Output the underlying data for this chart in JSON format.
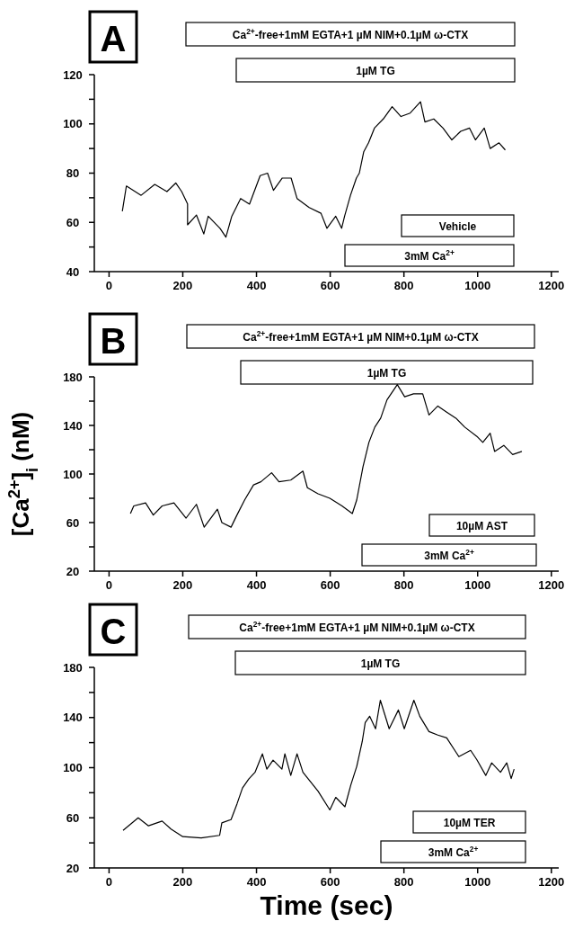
{
  "chart_data": [
    {
      "type": "line",
      "title": "A",
      "xlim": [
        -40,
        1220
      ],
      "xticks": [
        0,
        200,
        400,
        600,
        800,
        1000,
        1200
      ],
      "ylim": [
        40,
        120
      ],
      "yticks": [
        40,
        {
          "value": 50,
          "label": null
        },
        60,
        {
          "value": 70,
          "label": null
        },
        80,
        {
          "value": 90,
          "label": null
        },
        100,
        {
          "value": 110,
          "label": null
        },
        120
      ],
      "series": [
        {
          "color": "#000000",
          "x": [
            36,
            47,
            87,
            124,
            157,
            181,
            197,
            213,
            213,
            237,
            257,
            269,
            301,
            317,
            333,
            357,
            381,
            410,
            430,
            446,
            470,
            494,
            510,
            543,
            575,
            591,
            615,
            631,
            639,
            655,
            671,
            679,
            691,
            704,
            720,
            744,
            768,
            792,
            817,
            845,
            857,
            881,
            906,
            930,
            954,
            978,
            994,
            1018,
            1034,
            1058,
            1075
          ],
          "values": [
            64.5,
            74.8,
            71,
            75.4,
            72.5,
            76,
            72.5,
            67.5,
            59,
            63,
            55.3,
            62.5,
            57.6,
            54,
            62.5,
            69.7,
            67.4,
            79,
            80,
            73,
            78,
            78,
            69.7,
            66,
            63.7,
            57.6,
            62.5,
            57.6,
            62.5,
            71,
            78,
            80,
            88.7,
            92.3,
            98.3,
            102,
            107,
            103,
            104.4,
            109,
            100.8,
            102,
            98.3,
            93.5,
            97,
            98.3,
            93.5,
            98.3,
            90,
            92.3,
            89.4
          ]
        }
      ],
      "annotations": [
        "Ca$^{2+}$-free+1mM EGTA+1 µM NIM+0.1µM ω-CTX",
        "1µM TG",
        "Vehicle",
        "3mM Ca$^{2+}$"
      ]
    },
    {
      "type": "line",
      "title": "B",
      "ylabel": "[Ca$^{2+}$]$_{i}$ (nM)",
      "xlim": [
        -40,
        1220
      ],
      "xticks": [
        0,
        200,
        400,
        600,
        800,
        1000,
        1200
      ],
      "ylim": [
        20,
        180
      ],
      "yticks": [
        20,
        {
          "value": 40,
          "label": null
        },
        60,
        {
          "value": 80,
          "label": null
        },
        100,
        {
          "value": 120,
          "label": null
        },
        140,
        {
          "value": 160,
          "label": null
        },
        180
      ],
      "series": [
        {
          "color": "#000000",
          "x": [
            58,
            67,
            99,
            120,
            144,
            176,
            209,
            237,
            258,
            294,
            306,
            331,
            347,
            368,
            392,
            412,
            441,
            461,
            493,
            526,
            538,
            567,
            599,
            632,
            660,
            672,
            689,
            705,
            721,
            737,
            754,
            782,
            802,
            826,
            851,
            868,
            892,
            916,
            941,
            965,
            998,
            1014,
            1034,
            1046,
            1071,
            1095,
            1120
          ],
          "values": [
            67.4,
            73.7,
            76.2,
            66.2,
            73.7,
            76.2,
            63.7,
            75,
            56.2,
            71,
            60,
            56.2,
            66.2,
            78.7,
            91,
            93.6,
            101,
            93.6,
            95,
            102.4,
            88.7,
            83.7,
            80,
            73.7,
            67.4,
            78.7,
            106,
            126,
            138.6,
            146,
            161,
            173.6,
            163.6,
            166,
            166,
            148.6,
            156,
            151,
            146,
            138.6,
            131,
            126,
            133.6,
            118.6,
            123.6,
            116,
            118.6
          ]
        }
      ],
      "annotations": [
        "Ca$^{2+}$-free+1mM EGTA+1 µM NIM+0.1µM ω-CTX",
        "1µM TG",
        "10µM AST",
        "3mM Ca$^{2+}$"
      ]
    },
    {
      "type": "line",
      "title": "C",
      "xlabel": "Time (sec)",
      "xlim": [
        -40,
        1220
      ],
      "xticks": [
        0,
        200,
        400,
        600,
        800,
        1000,
        1200
      ],
      "ylim": [
        20,
        180
      ],
      "yticks": [
        20,
        {
          "value": 40,
          "label": null
        },
        60,
        {
          "value": 80,
          "label": null
        },
        100,
        {
          "value": 120,
          "label": null
        },
        140,
        {
          "value": 160,
          "label": null
        },
        180
      ],
      "series": [
        {
          "color": "#000000",
          "x": [
            38,
            79,
            107,
            144,
            168,
            200,
            250,
            300,
            306,
            331,
            347,
            362,
            379,
            396,
            416,
            428,
            445,
            469,
            477,
            493,
            510,
            526,
            567,
            599,
            615,
            640,
            656,
            672,
            687,
            695,
            707,
            723,
            736,
            760,
            785,
            801,
            827,
            843,
            868,
            892,
            916,
            949,
            981,
            998,
            1022,
            1038,
            1062,
            1079,
            1091,
            1099
          ],
          "values": [
            50,
            60,
            53.6,
            57.4,
            51,
            45,
            44,
            46,
            56,
            58.6,
            71,
            83.8,
            91,
            96.3,
            111,
            98.8,
            106,
            98.8,
            111,
            93.8,
            111,
            96.3,
            81.3,
            66.3,
            76.3,
            68.8,
            86.3,
            101,
            121,
            136,
            141,
            131,
            153.8,
            131,
            146,
            131,
            153.8,
            141,
            128.8,
            126,
            123.8,
            108.8,
            113.8,
            106.3,
            93.8,
            103.8,
            96.3,
            103.8,
            91.3,
            98.8
          ]
        }
      ],
      "annotations": [
        "Ca$^{2+}$-free+1mM EGTA+1 µM NIM+0.1µM ω-CTX",
        "1µM TG",
        "10µM TER",
        "3mM Ca$^{2+}$"
      ]
    }
  ]
}
